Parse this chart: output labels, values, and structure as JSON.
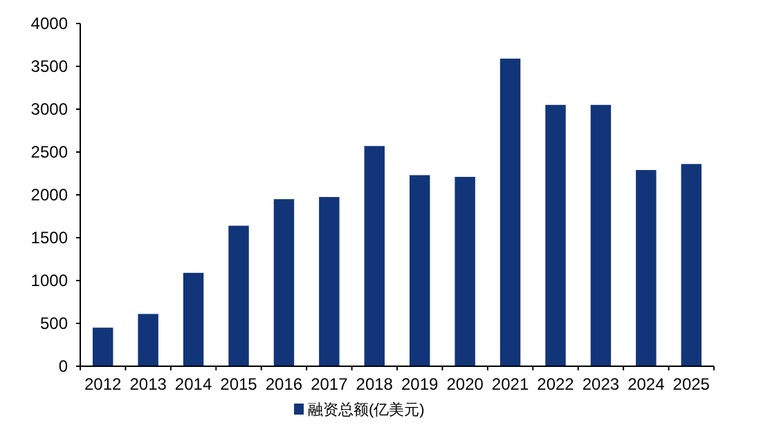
{
  "chart_data": {
    "type": "bar",
    "categories": [
      "2012",
      "2013",
      "2014",
      "2015",
      "2016",
      "2017",
      "2018",
      "2019",
      "2020",
      "2021",
      "2022",
      "2023",
      "2024",
      "2025"
    ],
    "series": [
      {
        "name": "融资总额(亿美元)",
        "color": "#12357a",
        "values": [
          450,
          610,
          1090,
          1640,
          1950,
          1975,
          2570,
          2230,
          2210,
          3590,
          3050,
          3050,
          2290,
          2360
        ]
      }
    ],
    "ylim": [
      0,
      4000
    ],
    "yticks": [
      0,
      500,
      1000,
      1500,
      2000,
      2500,
      3000,
      3500,
      4000
    ],
    "grid": false,
    "legend": "bottom"
  }
}
